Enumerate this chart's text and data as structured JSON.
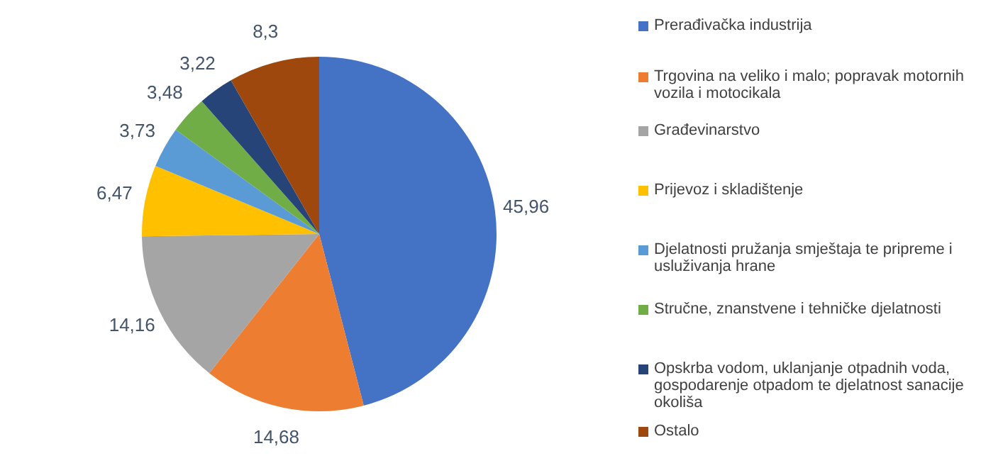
{
  "chart_data": {
    "type": "pie",
    "categories": [
      "Prerađivačka industrija",
      "Trgovina na veliko i malo; popravak motornih vozila i motocikala",
      "Građevinarstvo",
      "Prijevoz i skladištenje",
      "Djelatnosti pružanja smještaja te pripreme i usluživanja hrane",
      "Stručne, znanstvene i tehničke djelatnosti",
      "Opskrba vodom, uklanjanje otpadnih voda, gospodarenje otpadom te djelatnost sanacije okoliša",
      "Ostalo"
    ],
    "values": [
      45.96,
      14.68,
      14.16,
      6.47,
      3.73,
      3.48,
      3.22,
      8.3
    ],
    "value_labels": [
      "45,96",
      "14,68",
      "14,16",
      "6,47",
      "3,73",
      "3,48",
      "3,22",
      "8,3"
    ],
    "colors": [
      "#4472c4",
      "#ed7d31",
      "#a5a5a5",
      "#ffc000",
      "#5b9bd5",
      "#70ad47",
      "#264478",
      "#9e480e"
    ],
    "legend": "right"
  }
}
